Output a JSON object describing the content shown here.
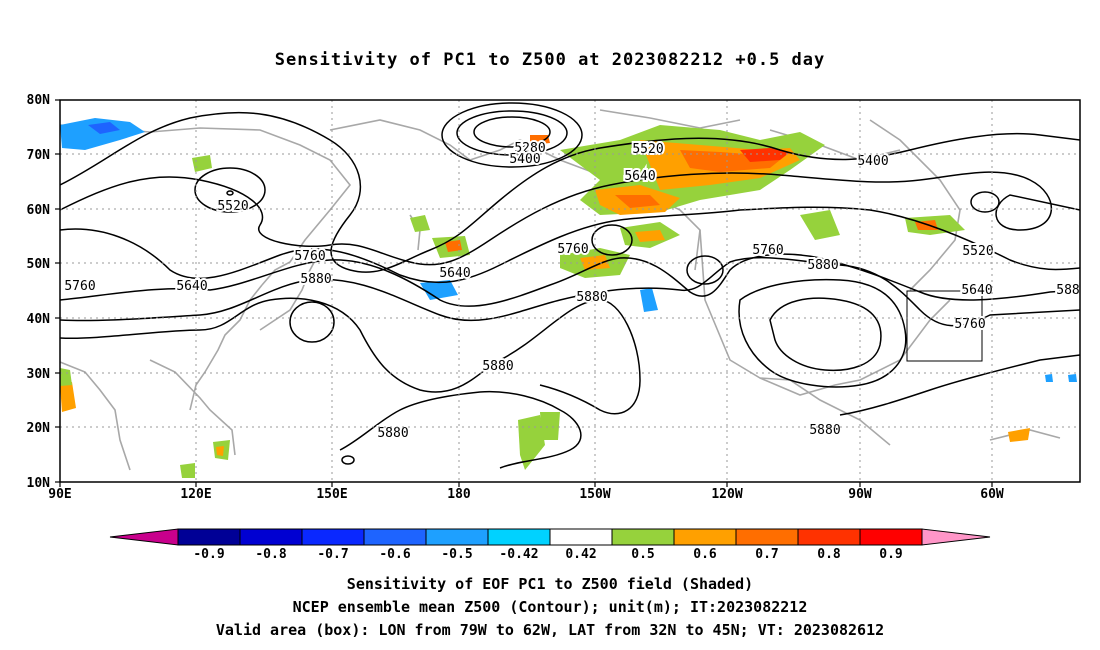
{
  "title": "Sensitivity of PC1 to Z500 at 2023082212 +0.5 day",
  "map": {
    "lat_labels": [
      "80N",
      "70N",
      "60N",
      "50N",
      "40N",
      "30N",
      "20N",
      "10N"
    ],
    "lon_labels": [
      "90E",
      "120E",
      "150E",
      "180",
      "150W",
      "120W",
      "90W",
      "60W"
    ],
    "contour_labels": [
      {
        "text": "5280"
      },
      {
        "text": "5400"
      },
      {
        "text": "5520"
      },
      {
        "text": "5400"
      },
      {
        "text": "5640"
      },
      {
        "text": "5520"
      },
      {
        "text": "5520"
      },
      {
        "text": "5760"
      },
      {
        "text": "5640"
      },
      {
        "text": "5760"
      },
      {
        "text": "5880"
      },
      {
        "text": "5640"
      },
      {
        "text": "5760"
      },
      {
        "text": "5880"
      },
      {
        "text": "5760"
      },
      {
        "text": "5880"
      },
      {
        "text": "5640"
      },
      {
        "text": "5760"
      },
      {
        "text": "588"
      },
      {
        "text": "5880"
      },
      {
        "text": "5880"
      },
      {
        "text": "5880"
      }
    ],
    "valid_box": {
      "lon_from": "79W",
      "lon_to": "62W",
      "lat_from": "32N",
      "lat_to": "45N"
    }
  },
  "colorbar": {
    "labels": [
      "-0.9",
      "-0.8",
      "-0.7",
      "-0.6",
      "-0.5",
      "-0.42",
      "0.42",
      "0.5",
      "0.6",
      "0.7",
      "0.8",
      "0.9"
    ],
    "colors": [
      "#000096",
      "#0000d2",
      "#0a28ff",
      "#1e64ff",
      "#1ea0ff",
      "#00d2ff",
      "#ffffff",
      "#96d23c",
      "#ffa000",
      "#ff6e00",
      "#ff3200",
      "#ff0000"
    ],
    "low_end_color": "#c8008c",
    "high_end_color": "#ff96c8"
  },
  "captions": {
    "line1": "Sensitivity of EOF PC1 to Z500 field (Shaded)",
    "line2": "NCEP ensemble mean Z500 (Contour); unit(m); IT:2023082212",
    "line3": "Valid area (box): LON from 79W to 62W, LAT from 32N to 45N; VT: 2023082612"
  }
}
